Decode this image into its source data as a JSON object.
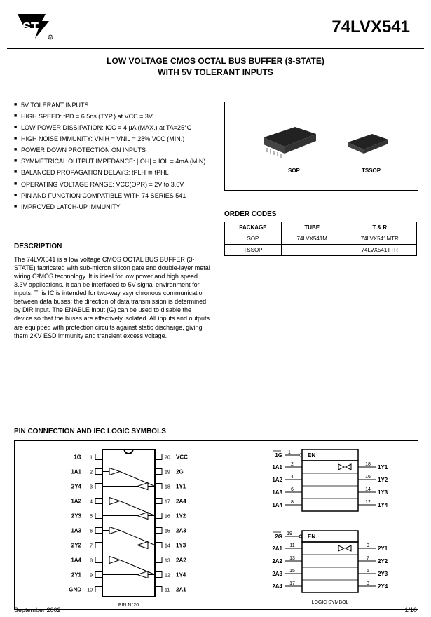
{
  "header": {
    "part_number": "74LVX541",
    "title_line1": "LOW VOLTAGE CMOS OCTAL BUS BUFFER (3-STATE)",
    "title_line2": "WITH 5V TOLERANT INPUTS"
  },
  "features": {
    "heading": "",
    "items": [
      "5V TOLERANT INPUTS",
      "HIGH SPEED: tPD = 6.5ns (TYP.) at VCC = 3V",
      "LOW POWER DISSIPATION: ICC = 4 μA (MAX.) at TA=25°C",
      "HIGH NOISE IMMUNITY: VNIH = VNIL = 28% VCC (MIN.)",
      "POWER DOWN PROTECTION ON INPUTS",
      "SYMMETRICAL OUTPUT IMPEDANCE: |IOH| = IOL = 4mA (MIN)",
      "BALANCED PROPAGATION DELAYS: tPLH ≅ tPHL",
      "OPERATING VOLTAGE RANGE: VCC(OPR) = 2V to 3.6V",
      "PIN AND FUNCTION COMPATIBLE WITH 74 SERIES 541",
      "IMPROVED LATCH-UP IMMUNITY"
    ]
  },
  "description": {
    "heading": "DESCRIPTION",
    "text": "The 74LVX541 is a low voltage CMOS OCTAL BUS BUFFER (3-STATE) fabricated with sub-micron silicon gate and double-layer metal wiring C²MOS technology. It is ideal for low power and high speed 3.3V applications. It can be interfaced to 5V signal environment for inputs. This IC is intended for two-way asynchronous communication between data buses; the direction of data transmission is determined by DIR input. The ENABLE input (G) can be used to disable the device so that the buses are effectively isolated. All inputs and outputs are equipped with protection circuits against static discharge, giving them 2KV ESD immunity and transient excess voltage."
  },
  "packages": {
    "items": [
      {
        "name": "SOP",
        "label": "SOP"
      },
      {
        "name": "TSSOP",
        "label": "TSSOP"
      }
    ]
  },
  "order": {
    "heading": "ORDER CODES",
    "columns": [
      "PACKAGE",
      "TUBE",
      "T & R"
    ],
    "rows": [
      [
        "SOP",
        "74LVX541M",
        "74LVX541MTR"
      ],
      [
        "TSSOP",
        "",
        "74LVX541TTR"
      ]
    ]
  },
  "diagram": {
    "heading": "PIN CONNECTION AND IEC LOGIC SYMBOLS",
    "left_labels_l": [
      "1G",
      "1A1",
      "2Y4",
      "1A2",
      "2Y3",
      "1A3",
      "2Y2",
      "1A4",
      "2Y1",
      "GND"
    ],
    "left_nums_l": [
      "1",
      "2",
      "3",
      "4",
      "5",
      "6",
      "7",
      "8",
      "9",
      "10"
    ],
    "left_labels_r": [
      "VCC",
      "2G",
      "1Y1",
      "2A4",
      "1Y2",
      "2A3",
      "1Y3",
      "2A2",
      "1Y4",
      "2A1"
    ],
    "left_nums_r": [
      "20",
      "19",
      "18",
      "17",
      "16",
      "15",
      "14",
      "13",
      "12",
      "11"
    ],
    "iec_block1": {
      "en_label": "EN",
      "g_label": "1G",
      "g_pin": "1",
      "rows": [
        {
          "in_label": "1A1",
          "in_pin": "2",
          "out_pin": "18",
          "out_label": "1Y1"
        },
        {
          "in_label": "1A2",
          "in_pin": "4",
          "out_pin": "16",
          "out_label": "1Y2"
        },
        {
          "in_label": "1A3",
          "in_pin": "6",
          "out_pin": "14",
          "out_label": "1Y3"
        },
        {
          "in_label": "1A4",
          "in_pin": "8",
          "out_pin": "12",
          "out_label": "1Y4"
        }
      ]
    },
    "iec_block2": {
      "en_label": "EN",
      "g_label": "2G",
      "g_pin": "19",
      "rows": [
        {
          "in_label": "2A1",
          "in_pin": "11",
          "out_pin": "9",
          "out_label": "2Y1"
        },
        {
          "in_label": "2A2",
          "in_pin": "13",
          "out_pin": "7",
          "out_label": "2Y2"
        },
        {
          "in_label": "2A3",
          "in_pin": "15",
          "out_pin": "5",
          "out_label": "2Y3"
        },
        {
          "in_label": "2A4",
          "in_pin": "17",
          "out_pin": "3",
          "out_label": "2Y4"
        }
      ]
    },
    "footer_left": "PIN N°20",
    "footer_right": "LOGIC SYMBOL",
    "date": "September 2002",
    "page": "1/10"
  }
}
